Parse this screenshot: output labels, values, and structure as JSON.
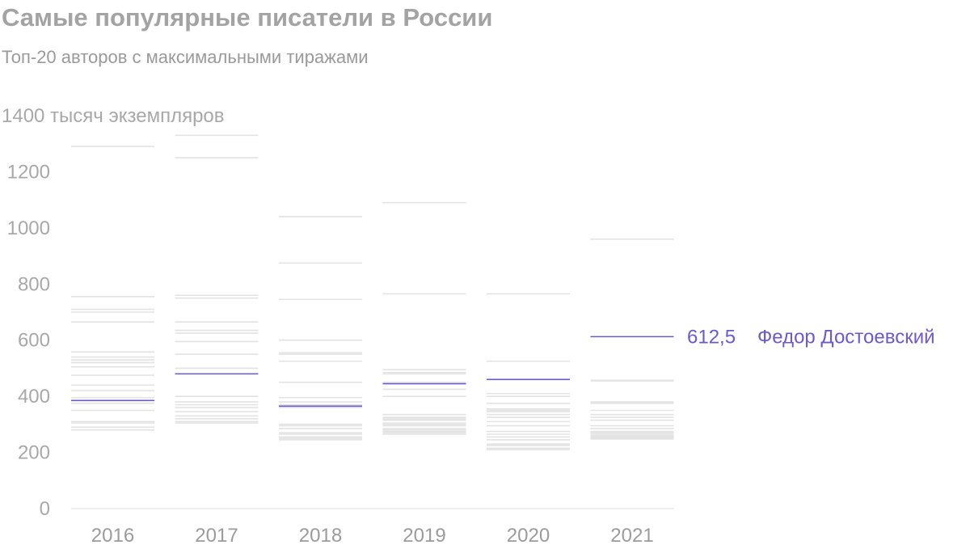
{
  "chart_data": {
    "type": "strip",
    "title": "Самые популярные писатели в России",
    "subtitle": "Топ-20 авторов с максимальными тиражами",
    "ylabel": "тысяч экземпляров",
    "ylim": [
      0,
      1400
    ],
    "yticks": [
      0,
      200,
      400,
      600,
      800,
      1000,
      1200,
      1400
    ],
    "top_tick_label": "1400 тысяч экземпляров",
    "categories": [
      "2016",
      "2017",
      "2018",
      "2019",
      "2020",
      "2021"
    ],
    "series": [
      {
        "year": "2016",
        "values": [
          1290,
          755,
          710,
          700,
          665,
          558,
          540,
          530,
          520,
          505,
          475,
          440,
          420,
          395,
          375,
          350,
          310,
          305,
          290,
          280
        ]
      },
      {
        "year": "2017",
        "values": [
          1330,
          1250,
          760,
          750,
          665,
          635,
          625,
          595,
          550,
          500,
          480,
          400,
          380,
          370,
          360,
          345,
          330,
          320,
          310,
          305
        ]
      },
      {
        "year": "2018",
        "values": [
          1040,
          875,
          745,
          600,
          555,
          550,
          525,
          450,
          395,
          380,
          370,
          360,
          300,
          295,
          285,
          270,
          265,
          255,
          250,
          245
        ]
      },
      {
        "year": "2019",
        "values": [
          1090,
          765,
          495,
          485,
          480,
          450,
          425,
          400,
          335,
          325,
          320,
          315,
          305,
          300,
          295,
          285,
          280,
          275,
          270,
          265
        ]
      },
      {
        "year": "2020",
        "values": [
          765,
          525,
          410,
          400,
          375,
          355,
          350,
          345,
          335,
          325,
          310,
          295,
          275,
          265,
          255,
          245,
          230,
          225,
          215,
          210
        ]
      },
      {
        "year": "2021",
        "values": [
          960,
          457,
          455,
          380,
          375,
          350,
          335,
          325,
          315,
          295,
          285,
          275,
          270,
          265,
          260,
          258,
          255,
          252,
          250,
          248
        ]
      }
    ],
    "highlight": {
      "name": "Федор Достоевский",
      "label_value": "612,5",
      "values": [
        385,
        480,
        365,
        445,
        460,
        612.5
      ],
      "color": "#6a5acd"
    },
    "colors": {
      "other": "#e3e3e3",
      "axis": "#dcdcdc",
      "highlight": "#6a5acd"
    },
    "grid": false
  }
}
